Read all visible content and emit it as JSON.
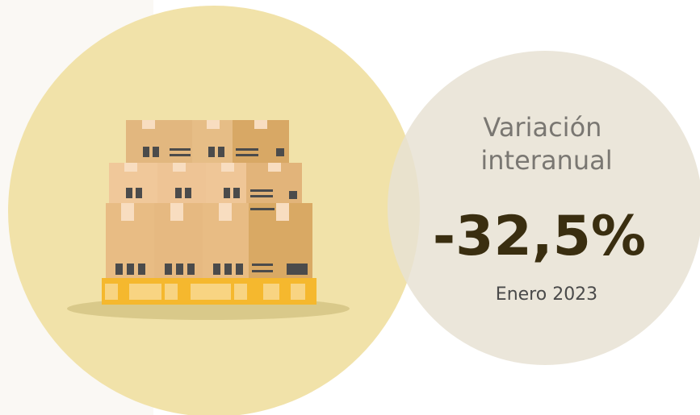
{
  "stat": {
    "title": "Variación interanual",
    "value": "-32,5%",
    "period": "Enero 2023"
  }
}
